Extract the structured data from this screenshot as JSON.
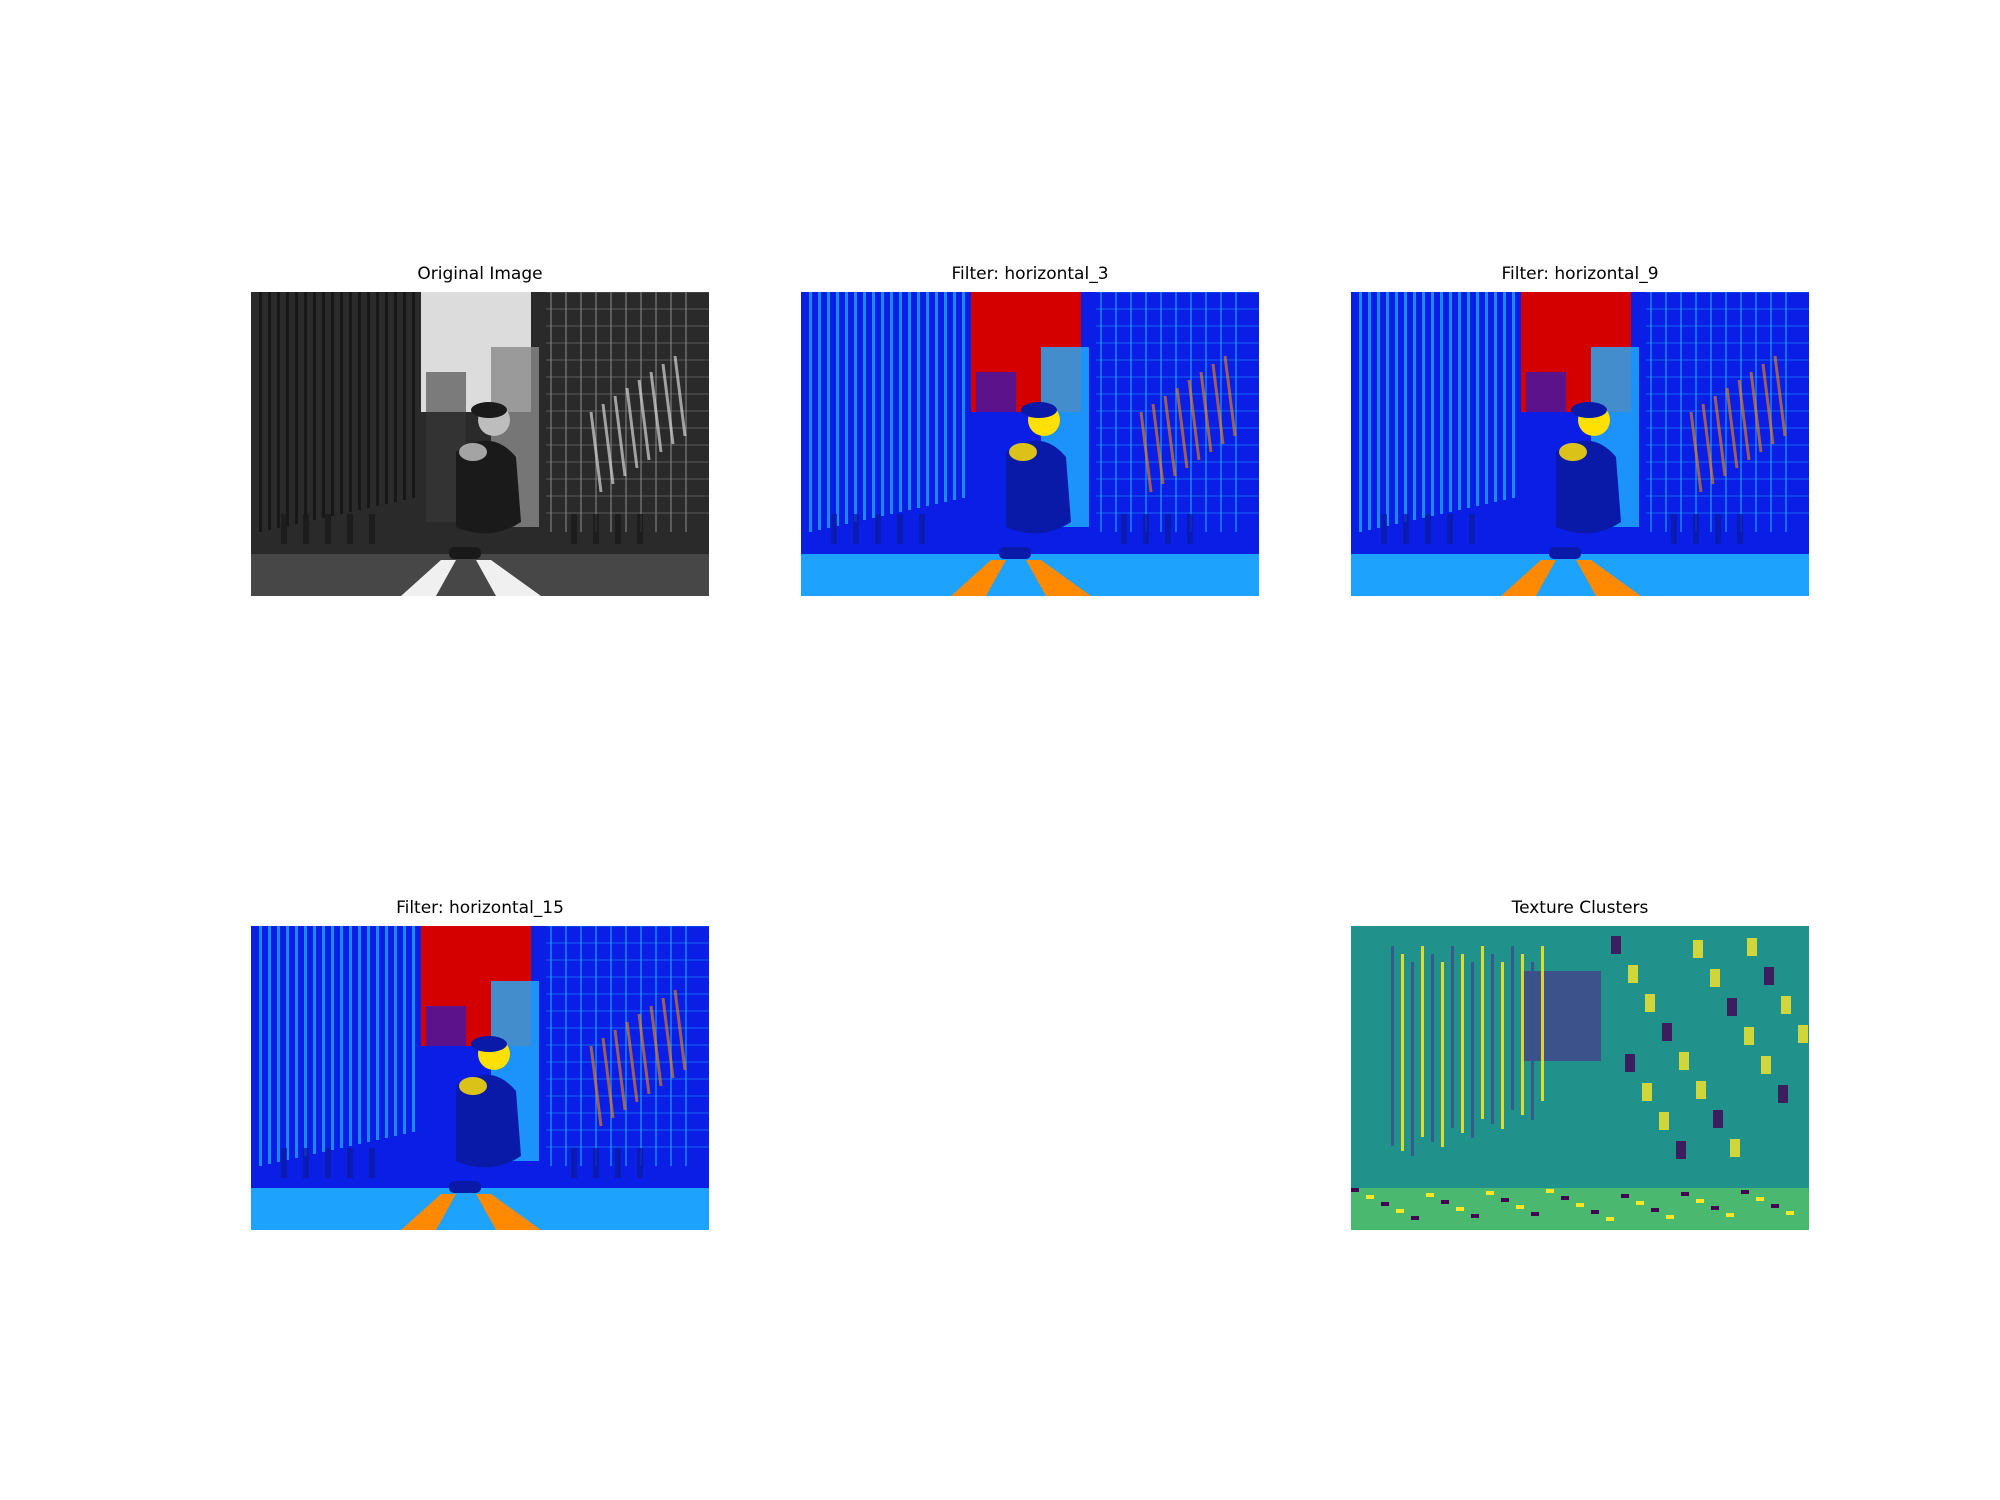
{
  "figure": {
    "panels": [
      {
        "title": "Original Image",
        "style": "grayscale"
      },
      {
        "title": "Filter: horizontal_3",
        "style": "jet"
      },
      {
        "title": "Filter: horizontal_9",
        "style": "jet"
      },
      {
        "title": "Filter: horizontal_15",
        "style": "jet"
      },
      {
        "title": "Texture Clusters",
        "style": "viridis-clusters"
      }
    ]
  },
  "colors": {
    "gray_dark": "#1e1e1e",
    "gray_mid": "#6a6a6a",
    "gray_light": "#dcdcdc",
    "jet_blue": "#0a1ee6",
    "jet_cyan": "#1fb0ff",
    "jet_green": "#6fe88a",
    "jet_yellow": "#ffe000",
    "jet_orange": "#ff8a00",
    "jet_red": "#d40000",
    "vir_teal": "#21918c",
    "vir_purple": "#3b528b",
    "vir_dark": "#440154",
    "vir_yellow": "#fde725",
    "vir_green": "#5ec962"
  }
}
